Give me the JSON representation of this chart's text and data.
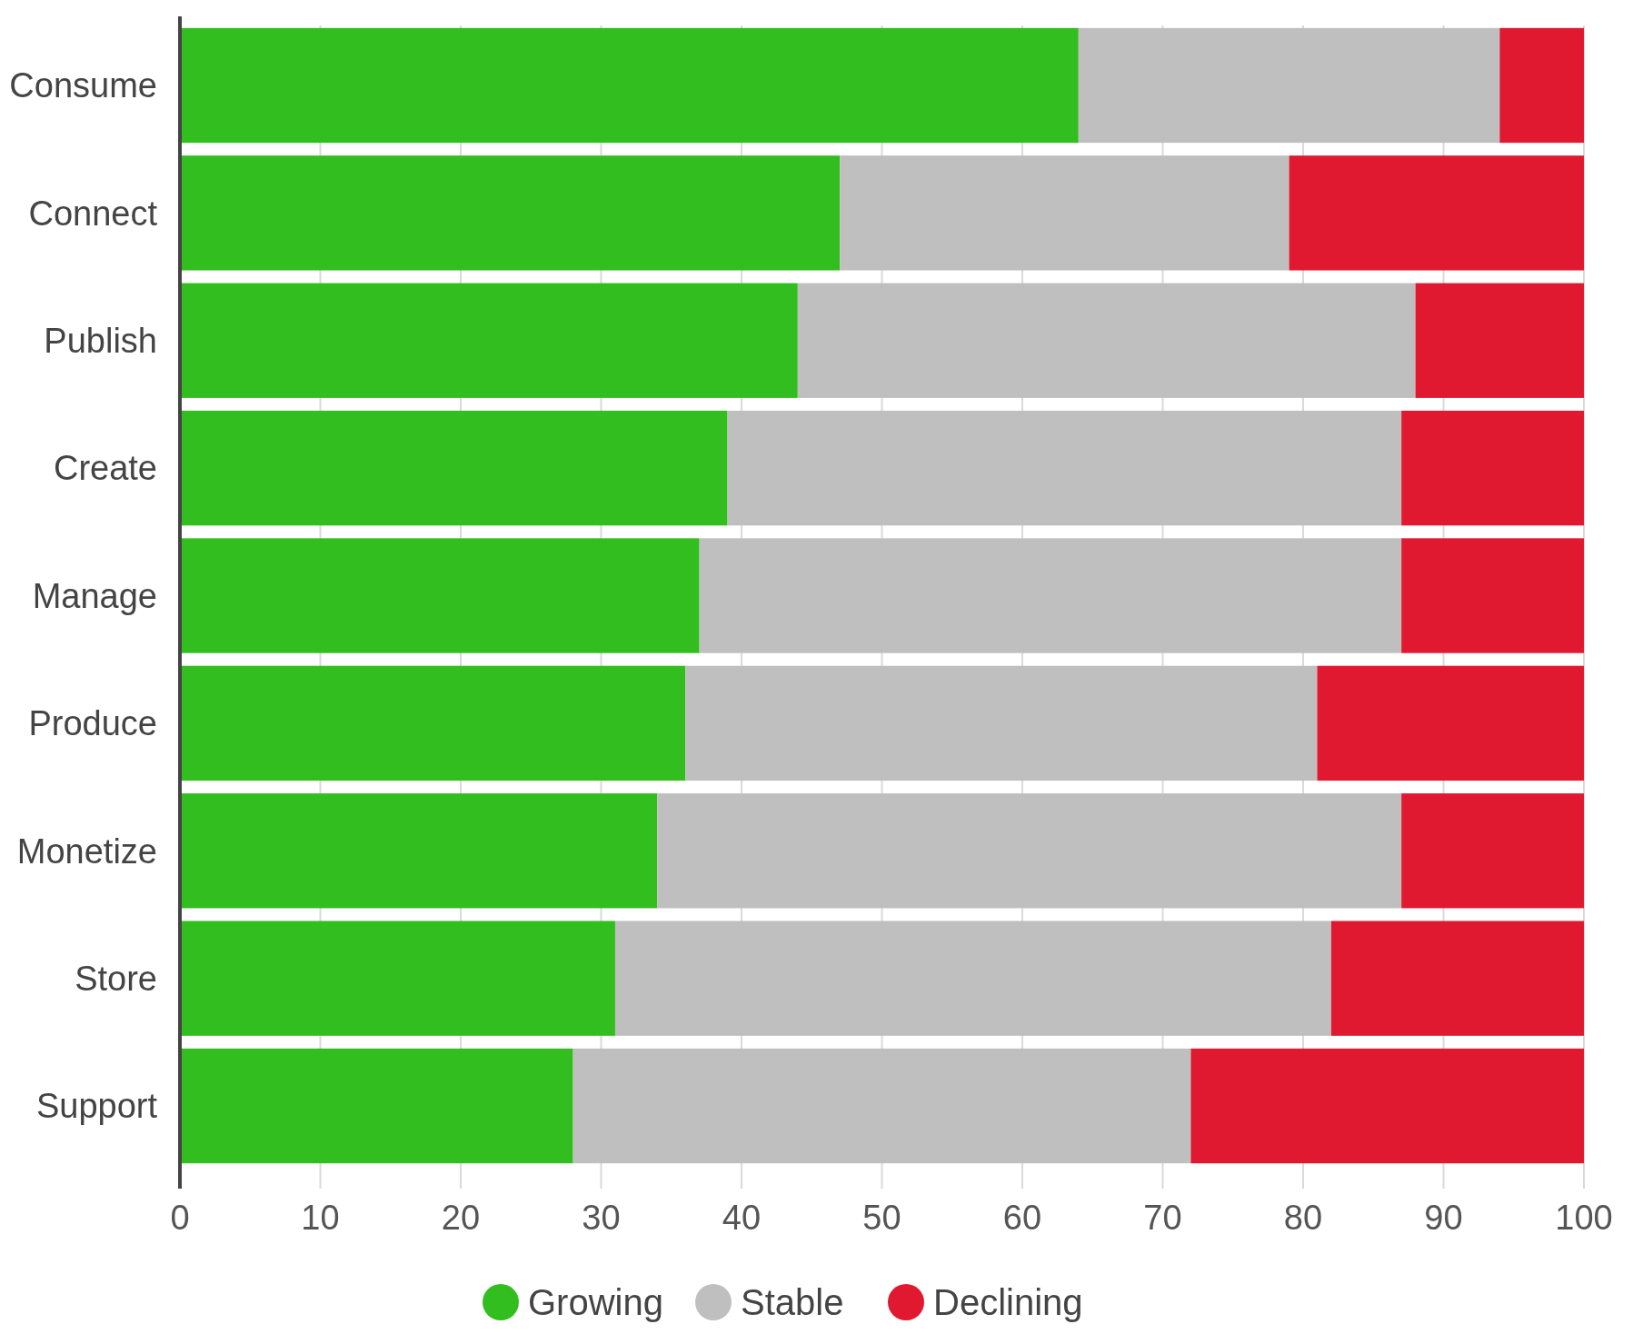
{
  "chart_data": {
    "type": "bar",
    "orientation": "horizontal",
    "stacked": true,
    "categories": [
      "Consume",
      "Connect",
      "Publish",
      "Create",
      "Manage",
      "Produce",
      "Monetize",
      "Store",
      "Support"
    ],
    "series": [
      {
        "name": "Growing",
        "color": "#32be1e",
        "values": [
          64,
          47,
          44,
          39,
          37,
          36,
          34,
          31,
          28
        ]
      },
      {
        "name": "Stable",
        "color": "#bfbfbf",
        "values": [
          30,
          32,
          44,
          48,
          50,
          45,
          53,
          51,
          44
        ]
      },
      {
        "name": "Declining",
        "color": "#e01930",
        "values": [
          6,
          21,
          12,
          13,
          13,
          19,
          13,
          18,
          28
        ]
      }
    ],
    "xlim": [
      0,
      100
    ],
    "xticks": [
      0,
      10,
      20,
      30,
      40,
      50,
      60,
      70,
      80,
      90,
      100
    ],
    "grid": "x",
    "legend": "bottom"
  }
}
